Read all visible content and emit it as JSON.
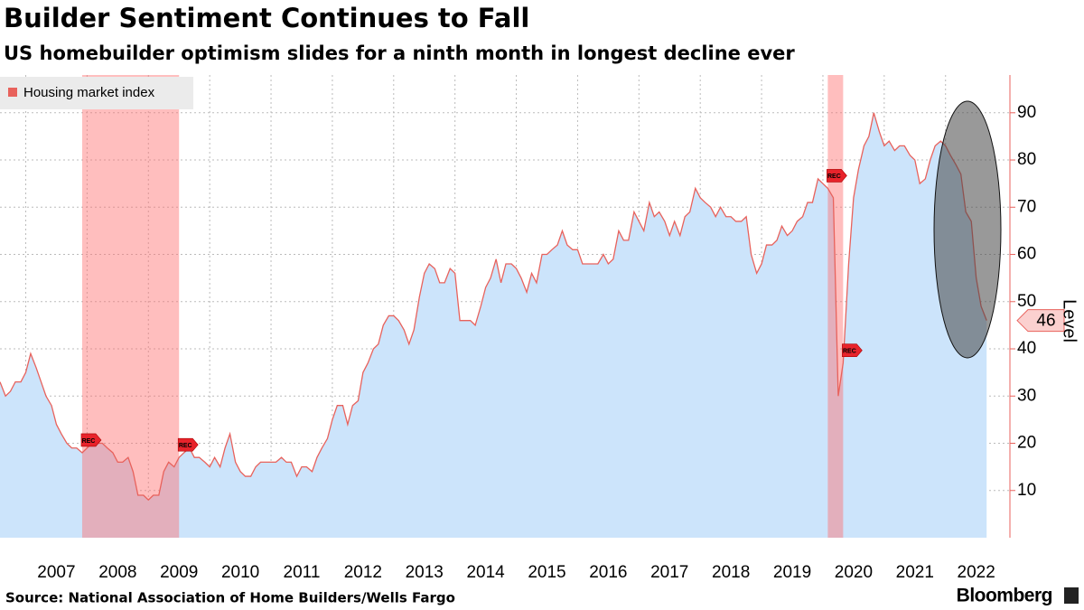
{
  "chart_data": {
    "type": "area",
    "title": "Builder Sentiment Continues to Fall",
    "subtitle": "US homebuilder optimism slides for a ninth month in longest decline ever",
    "y_axis_label": "Level",
    "source": "Source: National Association of Home Builders/Wells Fargo",
    "brand": "Bloomberg",
    "legend_position": "upper left",
    "grid": true,
    "xlim": [
      2006.58,
      2023.05
    ],
    "xticks": [
      {
        "value": 2007,
        "label": "2007"
      },
      {
        "value": 2008,
        "label": "2008"
      },
      {
        "value": 2009,
        "label": "2009"
      },
      {
        "value": 2010,
        "label": "2010"
      },
      {
        "value": 2011,
        "label": "2011"
      },
      {
        "value": 2012,
        "label": "2012"
      },
      {
        "value": 2013,
        "label": "2013"
      },
      {
        "value": 2014,
        "label": "2014"
      },
      {
        "value": 2015,
        "label": "2015"
      },
      {
        "value": 2016,
        "label": "2016"
      },
      {
        "value": 2017,
        "label": "2017"
      },
      {
        "value": 2018,
        "label": "2018"
      },
      {
        "value": 2019,
        "label": "2019"
      },
      {
        "value": 2020,
        "label": "2020"
      },
      {
        "value": 2021,
        "label": "2021"
      },
      {
        "value": 2022,
        "label": "2022"
      }
    ],
    "ylim": [
      0,
      98
    ],
    "yticks": [
      10,
      20,
      30,
      40,
      50,
      60,
      70,
      80,
      90
    ],
    "recessions": [
      {
        "start": 2007.92,
        "end": 2009.5,
        "label": "REC"
      },
      {
        "start": 2020.08,
        "end": 2020.33,
        "label": "REC"
      }
    ],
    "x": [
      2006.58,
      2006.67,
      2006.75,
      2006.83,
      2006.92,
      2007,
      2007.08,
      2007.17,
      2007.25,
      2007.33,
      2007.42,
      2007.5,
      2007.58,
      2007.67,
      2007.75,
      2007.83,
      2007.92,
      2008,
      2008.08,
      2008.17,
      2008.25,
      2008.33,
      2008.42,
      2008.5,
      2008.58,
      2008.67,
      2008.75,
      2008.83,
      2008.92,
      2009,
      2009.08,
      2009.17,
      2009.25,
      2009.33,
      2009.42,
      2009.5,
      2009.58,
      2009.67,
      2009.75,
      2009.83,
      2009.92,
      2010,
      2010.08,
      2010.17,
      2010.25,
      2010.33,
      2010.42,
      2010.5,
      2010.58,
      2010.67,
      2010.75,
      2010.83,
      2010.92,
      2011,
      2011.08,
      2011.17,
      2011.25,
      2011.33,
      2011.42,
      2011.5,
      2011.58,
      2011.67,
      2011.75,
      2011.83,
      2011.92,
      2012,
      2012.08,
      2012.17,
      2012.25,
      2012.33,
      2012.42,
      2012.5,
      2012.58,
      2012.67,
      2012.75,
      2012.83,
      2012.92,
      2013,
      2013.08,
      2013.17,
      2013.25,
      2013.33,
      2013.42,
      2013.5,
      2013.58,
      2013.67,
      2013.75,
      2013.83,
      2013.92,
      2014,
      2014.08,
      2014.17,
      2014.25,
      2014.33,
      2014.42,
      2014.5,
      2014.58,
      2014.67,
      2014.75,
      2014.83,
      2014.92,
      2015,
      2015.08,
      2015.17,
      2015.25,
      2015.33,
      2015.42,
      2015.5,
      2015.58,
      2015.67,
      2015.75,
      2015.83,
      2015.92,
      2016,
      2016.08,
      2016.17,
      2016.25,
      2016.33,
      2016.42,
      2016.5,
      2016.58,
      2016.67,
      2016.75,
      2016.83,
      2016.92,
      2017,
      2017.08,
      2017.17,
      2017.25,
      2017.33,
      2017.42,
      2017.5,
      2017.58,
      2017.67,
      2017.75,
      2017.83,
      2017.92,
      2018,
      2018.08,
      2018.17,
      2018.25,
      2018.33,
      2018.42,
      2018.5,
      2018.58,
      2018.67,
      2018.75,
      2018.83,
      2018.92,
      2019,
      2019.08,
      2019.17,
      2019.25,
      2019.33,
      2019.42,
      2019.5,
      2019.58,
      2019.67,
      2019.75,
      2019.83,
      2019.92,
      2020,
      2020.08,
      2020.17,
      2020.25,
      2020.33,
      2020.42,
      2020.5,
      2020.58,
      2020.67,
      2020.75,
      2020.83,
      2020.92,
      2021,
      2021.08,
      2021.17,
      2021.25,
      2021.33,
      2021.42,
      2021.5,
      2021.58,
      2021.67,
      2021.75,
      2021.83,
      2021.92,
      2022,
      2022.08,
      2022.17,
      2022.25,
      2022.33,
      2022.42,
      2022.5,
      2022.58,
      2022.67
    ],
    "series": [
      {
        "name": "Housing market index",
        "color": "#e8625c",
        "fill": "#cce4fb",
        "values": [
          33,
          30,
          31,
          33,
          33,
          35,
          39,
          36,
          33,
          30,
          28,
          24,
          22,
          20,
          19,
          19,
          18,
          19,
          20,
          20,
          20,
          19,
          18,
          16,
          16,
          17,
          14,
          9,
          9,
          8,
          9,
          9,
          14,
          16,
          15,
          17,
          18,
          19,
          17,
          17,
          16,
          15,
          17,
          15,
          19,
          22,
          16,
          14,
          13,
          13,
          15,
          16,
          16,
          16,
          16,
          17,
          16,
          16,
          13,
          15,
          15,
          14,
          17,
          19,
          21,
          25,
          28,
          28,
          24,
          28,
          29,
          35,
          37,
          40,
          41,
          45,
          47,
          47,
          46,
          44,
          41,
          44,
          51,
          56,
          58,
          57,
          54,
          54,
          57,
          56,
          46,
          46,
          46,
          45,
          49,
          53,
          55,
          59,
          54,
          58,
          58,
          57,
          55,
          52,
          56,
          54,
          60,
          60,
          61,
          62,
          65,
          62,
          61,
          61,
          58,
          58,
          58,
          58,
          60,
          58,
          59,
          65,
          63,
          63,
          69,
          67,
          65,
          71,
          68,
          69,
          67,
          64,
          67,
          64,
          68,
          69,
          74,
          72,
          71,
          70,
          68,
          70,
          68,
          68,
          67,
          67,
          68,
          60,
          56,
          58,
          62,
          62,
          63,
          66,
          64,
          65,
          67,
          68,
          71,
          71,
          76,
          75,
          74,
          72,
          30,
          37,
          58,
          72,
          78,
          83,
          85,
          90,
          86,
          83,
          84,
          82,
          83,
          83,
          81,
          80,
          75,
          76,
          80,
          83,
          84,
          83,
          81,
          79,
          77,
          69,
          67,
          55,
          49,
          46
        ]
      }
    ]
  }
}
